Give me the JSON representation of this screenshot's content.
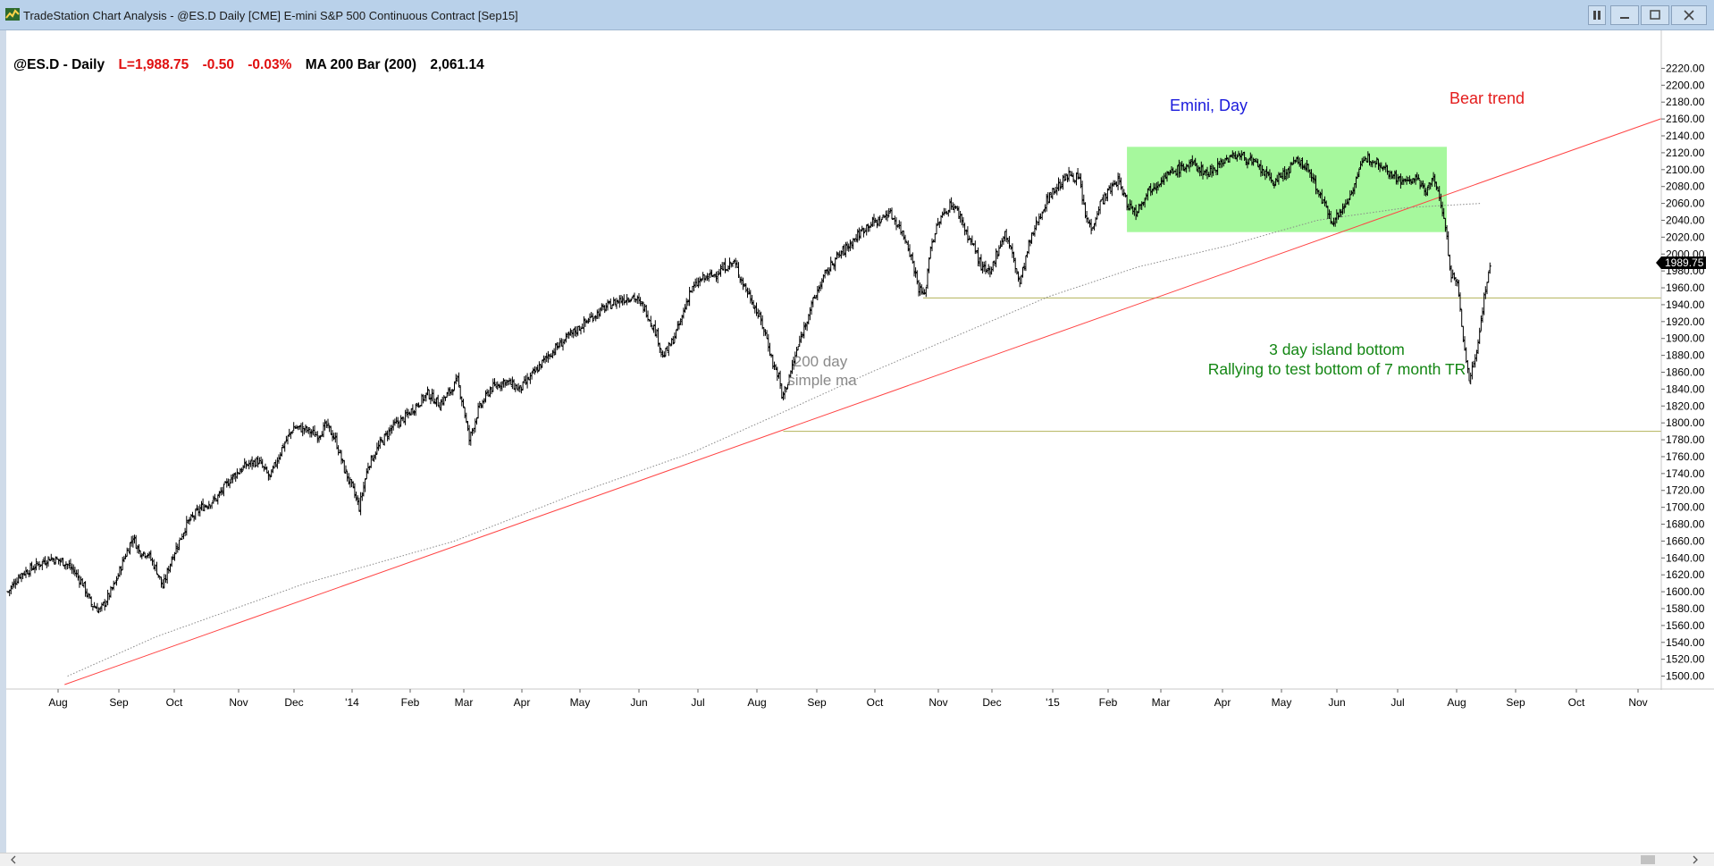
{
  "window": {
    "title": "TradeStation Chart Analysis - @ES.D Daily [CME] E-mini S&P 500 Continuous Contract [Sep15]",
    "buttons": [
      "restore",
      "minimize",
      "maximize",
      "close"
    ]
  },
  "header": {
    "symbol": "@ES.D - Daily",
    "last": "L=1,988.75",
    "change": "-0.50",
    "change_pct": "-0.03%",
    "indicator": "MA 200 Bar (200)",
    "indicator_value": "2,061.14"
  },
  "annotations": {
    "title": "Emini, Day",
    "bear": "Bear trend",
    "ma_line1": "200 day",
    "ma_line2": "simple ma",
    "island_line1": "3 day island bottom",
    "island_line2": "Rallying to test bottom of 7 month TR"
  },
  "price_marker": "1989.75",
  "colors": {
    "bar": "#000000",
    "range_box": "#a6f89d",
    "trendline": "#ff4444",
    "support": "#b2b25a",
    "ma": "#888888",
    "annotation_blue": "#1a1adc",
    "annotation_red": "#e41c1c",
    "annotation_green": "#138613",
    "annotation_gray": "#8a8a8a",
    "header_red": "#e01010"
  },
  "chart_data": {
    "type": "ohlc",
    "ylim": [
      1490,
      2230
    ],
    "yticks": [
      "2220.00",
      "2200.00",
      "2180.00",
      "2160.00",
      "2140.00",
      "2120.00",
      "2100.00",
      "2080.00",
      "2060.00",
      "2040.00",
      "2020.00",
      "2000.00",
      "1980.00",
      "1960.00",
      "1940.00",
      "1920.00",
      "1900.00",
      "1880.00",
      "1860.00",
      "1840.00",
      "1820.00",
      "1800.00",
      "1780.00",
      "1760.00",
      "1740.00",
      "1720.00",
      "1700.00",
      "1680.00",
      "1660.00",
      "1640.00",
      "1620.00",
      "1600.00",
      "1580.00",
      "1560.00",
      "1540.00",
      "1520.00",
      "1500.00"
    ],
    "xticks": [
      "Aug",
      "Sep",
      "Oct",
      "Nov",
      "Dec",
      "'14",
      "Feb",
      "Mar",
      "Apr",
      "May",
      "Jun",
      "Jul",
      "Aug",
      "Sep",
      "Oct",
      "Nov",
      "Dec",
      "'15",
      "Feb",
      "Mar",
      "Apr",
      "May",
      "Jun",
      "Jul",
      "Aug",
      "Sep",
      "Oct",
      "Nov"
    ],
    "close_path": [
      [
        0,
        1600
      ],
      [
        8,
        1620
      ],
      [
        18,
        1630
      ],
      [
        28,
        1640
      ],
      [
        38,
        1635
      ],
      [
        44,
        1625
      ],
      [
        50,
        1610
      ],
      [
        56,
        1585
      ],
      [
        62,
        1578
      ],
      [
        66,
        1590
      ],
      [
        72,
        1610
      ],
      [
        78,
        1640
      ],
      [
        84,
        1665
      ],
      [
        88,
        1648
      ],
      [
        94,
        1645
      ],
      [
        100,
        1625
      ],
      [
        104,
        1605
      ],
      [
        110,
        1640
      ],
      [
        120,
        1680
      ],
      [
        130,
        1700
      ],
      [
        140,
        1710
      ],
      [
        150,
        1735
      ],
      [
        160,
        1750
      ],
      [
        168,
        1755
      ],
      [
        176,
        1735
      ],
      [
        184,
        1770
      ],
      [
        192,
        1795
      ],
      [
        200,
        1792
      ],
      [
        208,
        1785
      ],
      [
        214,
        1797
      ],
      [
        220,
        1780
      ],
      [
        226,
        1745
      ],
      [
        232,
        1720
      ],
      [
        236,
        1700
      ],
      [
        242,
        1750
      ],
      [
        250,
        1775
      ],
      [
        258,
        1795
      ],
      [
        266,
        1805
      ],
      [
        274,
        1820
      ],
      [
        282,
        1835
      ],
      [
        290,
        1822
      ],
      [
        296,
        1835
      ],
      [
        302,
        1850
      ],
      [
        306,
        1820
      ],
      [
        310,
        1780
      ],
      [
        316,
        1815
      ],
      [
        324,
        1840
      ],
      [
        334,
        1850
      ],
      [
        344,
        1840
      ],
      [
        354,
        1860
      ],
      [
        362,
        1878
      ],
      [
        372,
        1895
      ],
      [
        382,
        1910
      ],
      [
        392,
        1925
      ],
      [
        400,
        1935
      ],
      [
        410,
        1945
      ],
      [
        420,
        1950
      ],
      [
        428,
        1935
      ],
      [
        436,
        1905
      ],
      [
        440,
        1878
      ],
      [
        446,
        1895
      ],
      [
        452,
        1920
      ],
      [
        458,
        1955
      ],
      [
        466,
        1970
      ],
      [
        474,
        1975
      ],
      [
        482,
        1985
      ],
      [
        488,
        1990
      ],
      [
        494,
        1965
      ],
      [
        500,
        1945
      ],
      [
        506,
        1920
      ],
      [
        510,
        1900
      ],
      [
        514,
        1870
      ],
      [
        518,
        1855
      ],
      [
        520,
        1830
      ],
      [
        524,
        1848
      ],
      [
        530,
        1885
      ],
      [
        538,
        1930
      ],
      [
        546,
        1965
      ],
      [
        554,
        1990
      ],
      [
        562,
        2005
      ],
      [
        570,
        2020
      ],
      [
        578,
        2035
      ],
      [
        586,
        2040
      ],
      [
        592,
        2050
      ],
      [
        598,
        2035
      ],
      [
        604,
        2015
      ],
      [
        608,
        1990
      ],
      [
        612,
        1960
      ],
      [
        616,
        1950
      ],
      [
        620,
        2010
      ],
      [
        626,
        2040
      ],
      [
        634,
        2060
      ],
      [
        640,
        2045
      ],
      [
        644,
        2025
      ],
      [
        650,
        2005
      ],
      [
        654,
        1985
      ],
      [
        660,
        1975
      ],
      [
        664,
        2000
      ],
      [
        670,
        2025
      ],
      [
        674,
        2005
      ],
      [
        680,
        1965
      ],
      [
        686,
        2010
      ],
      [
        692,
        2040
      ],
      [
        700,
        2070
      ],
      [
        708,
        2085
      ],
      [
        714,
        2095
      ],
      [
        720,
        2088
      ],
      [
        724,
        2045
      ],
      [
        728,
        2030
      ],
      [
        734,
        2060
      ],
      [
        740,
        2075
      ],
      [
        746,
        2088
      ],
      [
        752,
        2060
      ],
      [
        758,
        2050
      ],
      [
        766,
        2075
      ],
      [
        776,
        2090
      ],
      [
        786,
        2100
      ],
      [
        796,
        2107
      ],
      [
        806,
        2095
      ],
      [
        816,
        2110
      ],
      [
        826,
        2118
      ],
      [
        834,
        2112
      ],
      [
        842,
        2100
      ],
      [
        850,
        2085
      ],
      [
        858,
        2095
      ],
      [
        866,
        2110
      ],
      [
        872,
        2105
      ],
      [
        878,
        2085
      ],
      [
        884,
        2060
      ],
      [
        890,
        2040
      ],
      [
        896,
        2050
      ],
      [
        902,
        2070
      ],
      [
        908,
        2100
      ],
      [
        914,
        2115
      ],
      [
        922,
        2108
      ],
      [
        930,
        2095
      ],
      [
        938,
        2085
      ],
      [
        946,
        2090
      ],
      [
        952,
        2075
      ],
      [
        958,
        2088
      ],
      [
        962,
        2070
      ],
      [
        966,
        2030
      ],
      [
        970,
        1975
      ],
      [
        974,
        1965
      ],
      [
        978,
        1900
      ],
      [
        982,
        1850
      ],
      [
        988,
        1895
      ],
      [
        992,
        1950
      ],
      [
        996,
        1985
      ]
    ],
    "ma_points": [
      [
        40,
        1500
      ],
      [
        100,
        1547
      ],
      [
        200,
        1610
      ],
      [
        300,
        1660
      ],
      [
        380,
        1715
      ],
      [
        460,
        1765
      ],
      [
        520,
        1812
      ],
      [
        580,
        1860
      ],
      [
        640,
        1905
      ],
      [
        700,
        1950
      ],
      [
        760,
        1985
      ],
      [
        820,
        2010
      ],
      [
        880,
        2040
      ],
      [
        940,
        2055
      ],
      [
        990,
        2060
      ]
    ],
    "range_box": {
      "bar_from": 752,
      "bar_to": 967,
      "top": 2127,
      "bottom": 2026
    },
    "trendline": [
      [
        38,
        1490
      ],
      [
        1000,
        2091
      ]
    ],
    "support_1948": {
      "from_bar": 615,
      "value": 1948
    },
    "support_1790": {
      "from_bar": 521,
      "value": 1790
    }
  }
}
